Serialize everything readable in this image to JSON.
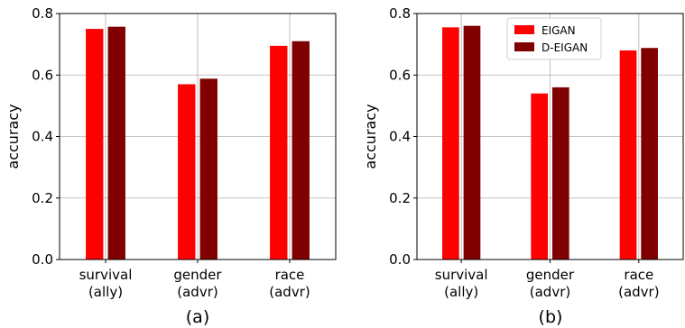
{
  "chart_data": [
    {
      "type": "bar",
      "caption": "(a)",
      "categories": [
        "survival\n(ally)",
        "gender\n(advr)",
        "race\n(advr)"
      ],
      "series": [
        {
          "name": "EIGAN",
          "color": "#ff0000",
          "values": [
            0.75,
            0.57,
            0.695
          ]
        },
        {
          "name": "D-EIGAN",
          "color": "#800000",
          "values": [
            0.757,
            0.588,
            0.71
          ]
        }
      ],
      "ylabel": "accuracy",
      "ylim": [
        0,
        0.8
      ],
      "yticks": [
        "0.0",
        "0.2",
        "0.4",
        "0.6",
        "0.8"
      ],
      "grid": true,
      "legend": null
    },
    {
      "type": "bar",
      "caption": "(b)",
      "categories": [
        "survival\n(ally)",
        "gender\n(advr)",
        "race\n(advr)"
      ],
      "series": [
        {
          "name": "EIGAN",
          "color": "#ff0000",
          "values": [
            0.755,
            0.54,
            0.68
          ]
        },
        {
          "name": "D-EIGAN",
          "color": "#800000",
          "values": [
            0.76,
            0.56,
            0.688
          ]
        }
      ],
      "ylabel": "accuracy",
      "ylim": [
        0,
        0.8
      ],
      "yticks": [
        "0.0",
        "0.2",
        "0.4",
        "0.6",
        "0.8"
      ],
      "grid": true,
      "legend": "top-center"
    }
  ]
}
